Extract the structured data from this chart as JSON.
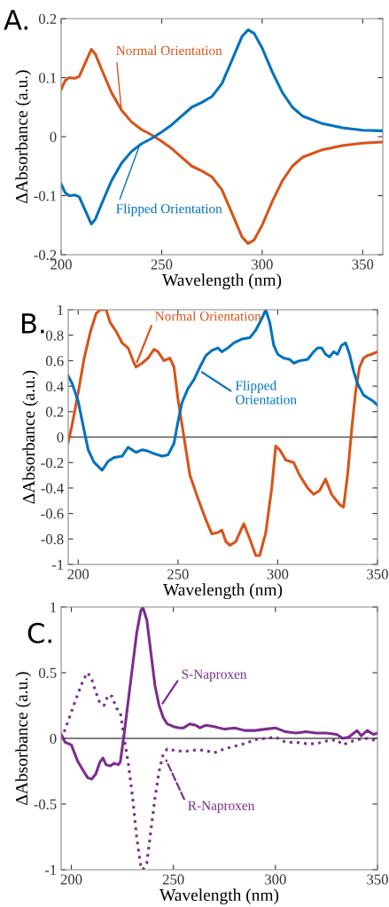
{
  "chart_data": [
    {
      "type": "line",
      "xlabel": "Wavelength (nm)",
      "ylabel": "ΔAbsorbance (a.u.)",
      "xlim": [
        200,
        360
      ],
      "ylim": [
        -0.2,
        0.2
      ],
      "xticks": [
        200,
        250,
        300,
        350
      ],
      "yticks": [
        -0.2,
        -0.1,
        0,
        0.1,
        0.2
      ],
      "grid": false,
      "legend": false,
      "series": [
        {
          "color": "#d95319",
          "x": [
            200,
            202,
            204,
            207,
            209,
            212,
            215,
            217,
            220,
            225,
            230,
            235,
            240,
            245,
            250,
            255,
            260,
            265,
            270,
            275,
            280,
            285,
            290,
            293,
            296,
            300,
            305,
            310,
            315,
            320,
            330,
            340,
            350,
            360
          ],
          "values": [
            0.08,
            0.095,
            0.1,
            0.099,
            0.102,
            0.125,
            0.148,
            0.14,
            0.115,
            0.075,
            0.045,
            0.025,
            0.012,
            0.003,
            -0.008,
            -0.02,
            -0.035,
            -0.05,
            -0.058,
            -0.068,
            -0.09,
            -0.13,
            -0.17,
            -0.181,
            -0.175,
            -0.15,
            -0.11,
            -0.075,
            -0.05,
            -0.035,
            -0.022,
            -0.015,
            -0.011,
            -0.009
          ]
        },
        {
          "color": "#0072bd",
          "x": [
            200,
            202,
            204,
            207,
            209,
            212,
            215,
            217,
            220,
            225,
            230,
            235,
            240,
            245,
            250,
            255,
            260,
            265,
            270,
            275,
            280,
            285,
            290,
            293,
            296,
            300,
            305,
            310,
            315,
            320,
            330,
            340,
            350,
            360
          ],
          "values": [
            -0.08,
            -0.095,
            -0.1,
            -0.099,
            -0.102,
            -0.125,
            -0.148,
            -0.14,
            -0.115,
            -0.075,
            -0.045,
            -0.025,
            -0.012,
            -0.003,
            0.008,
            0.02,
            0.035,
            0.05,
            0.058,
            0.068,
            0.09,
            0.13,
            0.17,
            0.181,
            0.175,
            0.15,
            0.11,
            0.075,
            0.05,
            0.035,
            0.022,
            0.015,
            0.011,
            0.01
          ]
        }
      ],
      "annotations": [
        "A.",
        {
          "text": "Normal Orientation",
          "x": 230,
          "y": 0.045
        },
        {
          "text": "Flipped Orientation",
          "x": 239,
          "y": -0.015
        }
      ]
    },
    {
      "type": "line",
      "xlabel": "Wavelength (nm)",
      "ylabel": "ΔAbsorbance (a.u.)",
      "xlim": [
        195,
        350
      ],
      "ylim": [
        -1,
        1
      ],
      "xticks": [
        200,
        250,
        300,
        350
      ],
      "yticks": [
        -1,
        -0.8,
        -0.6,
        -0.4,
        -0.2,
        0,
        0.2,
        0.4,
        0.6,
        0.8,
        1
      ],
      "grid": false,
      "legend": false,
      "ref_lines": [
        {
          "axis": "y",
          "value": 0,
          "color": "#555555"
        }
      ],
      "series": [
        {
          "color": "#d95319",
          "x": [
            195,
            197,
            200,
            203,
            206,
            209,
            211,
            214,
            216,
            219,
            222,
            225,
            228,
            229,
            232,
            235,
            238,
            240,
            243,
            246,
            248,
            250,
            253,
            256,
            260,
            264,
            267,
            270,
            272,
            274,
            276,
            279,
            283,
            286,
            289,
            291,
            294,
            297,
            299,
            301,
            304,
            308,
            311,
            315,
            318,
            321,
            324,
            327,
            331,
            333,
            335,
            337,
            339,
            341,
            343,
            345,
            347,
            350
          ],
          "values": [
            -0.04,
            0.1,
            0.35,
            0.62,
            0.82,
            0.97,
            1.0,
            1.0,
            0.9,
            0.83,
            0.74,
            0.7,
            0.58,
            0.55,
            0.58,
            0.62,
            0.69,
            0.67,
            0.6,
            0.62,
            0.55,
            0.3,
            0.0,
            -0.3,
            -0.48,
            -0.65,
            -0.76,
            -0.75,
            -0.73,
            -0.82,
            -0.85,
            -0.82,
            -0.68,
            -0.8,
            -0.93,
            -0.93,
            -0.75,
            -0.4,
            -0.07,
            -0.1,
            -0.18,
            -0.2,
            -0.3,
            -0.4,
            -0.45,
            -0.42,
            -0.33,
            -0.45,
            -0.53,
            -0.55,
            -0.3,
            0.05,
            0.35,
            0.55,
            0.62,
            0.64,
            0.65,
            0.67
          ]
        },
        {
          "color": "#0072bd",
          "x": [
            195,
            197,
            200,
            203,
            205,
            208,
            212,
            215,
            218,
            222,
            225,
            227,
            229,
            232,
            235,
            238,
            242,
            245,
            248,
            250,
            252,
            255,
            258,
            261,
            264,
            267,
            270,
            272,
            275,
            278,
            282,
            286,
            289,
            292,
            294,
            296,
            298,
            300,
            303,
            306,
            308,
            311,
            315,
            318,
            320,
            322,
            324,
            326,
            328,
            330,
            332,
            334,
            336,
            338,
            340,
            343,
            346,
            348,
            350
          ],
          "values": [
            0.48,
            0.42,
            0.28,
            0.05,
            -0.1,
            -0.2,
            -0.26,
            -0.19,
            -0.16,
            -0.15,
            -0.08,
            -0.1,
            -0.12,
            -0.1,
            -0.11,
            -0.13,
            -0.15,
            -0.14,
            -0.05,
            0.12,
            0.27,
            0.38,
            0.45,
            0.55,
            0.64,
            0.68,
            0.7,
            0.67,
            0.7,
            0.74,
            0.77,
            0.78,
            0.84,
            0.93,
            1.0,
            0.9,
            0.72,
            0.65,
            0.62,
            0.61,
            0.58,
            0.6,
            0.61,
            0.67,
            0.7,
            0.7,
            0.65,
            0.63,
            0.67,
            0.65,
            0.72,
            0.74,
            0.65,
            0.52,
            0.42,
            0.33,
            0.3,
            0.28,
            0.25
          ]
        }
      ],
      "annotations": [
        "B.",
        {
          "text": "Normal Orientation",
          "x": 229,
          "y": 0.57
        },
        {
          "text": "Flipped\nOrientation",
          "x": 261,
          "y": 0.52
        }
      ]
    },
    {
      "type": "line",
      "xlabel": "Wavelength (nm)",
      "ylabel": "ΔAbsorbance (a.u.)",
      "xlim": [
        195,
        350
      ],
      "ylim": [
        -1,
        1
      ],
      "xticks": [
        200,
        250,
        300,
        350
      ],
      "yticks": [
        -1,
        -0.5,
        0,
        0.5,
        1
      ],
      "grid": false,
      "legend": false,
      "ref_lines": [
        {
          "axis": "y",
          "value": 0,
          "color": "#555555"
        }
      ],
      "series": [
        {
          "color": "#7b2d8e",
          "line_style": "solid",
          "x": [
            195,
            197,
            200,
            203,
            206,
            208,
            210,
            212,
            214,
            215.5,
            217,
            219,
            221,
            223,
            224,
            226,
            228,
            230,
            232,
            234,
            235,
            237,
            239,
            241,
            243,
            245,
            247,
            250,
            253,
            255,
            258,
            261,
            263,
            266,
            270,
            275,
            280,
            285,
            290,
            295,
            300,
            305,
            310,
            315,
            320,
            325,
            330,
            333,
            336,
            340,
            342,
            345,
            348,
            350
          ],
          "values": [
            0.03,
            -0.03,
            -0.05,
            -0.17,
            -0.25,
            -0.3,
            -0.31,
            -0.27,
            -0.18,
            -0.15,
            -0.2,
            -0.21,
            -0.19,
            -0.2,
            -0.18,
            0.05,
            0.3,
            0.55,
            0.8,
            0.97,
            1.0,
            0.9,
            0.65,
            0.4,
            0.25,
            0.16,
            0.11,
            0.09,
            0.08,
            0.08,
            0.11,
            0.1,
            0.08,
            0.1,
            0.09,
            0.07,
            0.08,
            0.06,
            0.06,
            0.07,
            0.08,
            0.05,
            0.04,
            0.05,
            0.04,
            0.04,
            0.03,
            0.0,
            0.01,
            0.06,
            0.02,
            0.06,
            0.03,
            0.04
          ]
        },
        {
          "color": "#7b2d8e",
          "line_style": "dotted",
          "x": [
            195,
            197,
            200,
            203,
            206,
            208,
            210,
            212,
            214,
            216,
            218,
            220,
            222,
            224,
            226,
            228,
            230,
            232,
            234,
            235,
            237,
            239,
            241,
            243,
            245,
            247,
            250,
            255,
            260,
            265,
            270,
            275,
            280,
            285,
            290,
            295,
            300,
            305,
            310,
            315,
            320,
            325,
            330,
            333,
            336,
            340,
            345,
            350
          ],
          "values": [
            0.0,
            0.07,
            0.2,
            0.33,
            0.45,
            0.5,
            0.45,
            0.35,
            0.27,
            0.25,
            0.33,
            0.32,
            0.23,
            0.2,
            -0.01,
            -0.2,
            -0.45,
            -0.75,
            -0.97,
            -1.0,
            -0.95,
            -0.7,
            -0.45,
            -0.25,
            -0.12,
            -0.08,
            -0.09,
            -0.1,
            -0.09,
            -0.09,
            -0.11,
            -0.08,
            -0.06,
            -0.04,
            -0.01,
            0.0,
            0.01,
            -0.03,
            -0.03,
            -0.04,
            -0.04,
            -0.02,
            -0.01,
            -0.05,
            -0.03,
            -0.01,
            0.0,
            -0.02
          ]
        }
      ],
      "annotations": [
        "C.",
        {
          "text": "S-Naproxen",
          "x": 244,
          "y": 0.25
        },
        {
          "text": "R-Naproxen",
          "x": 246,
          "y": -0.15
        }
      ]
    }
  ]
}
